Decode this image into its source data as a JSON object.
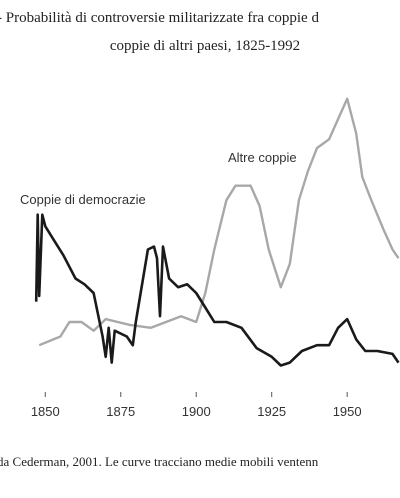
{
  "chart_data": {
    "type": "line",
    "title": "- Probabilità di controversie militarizzate fra coppie d",
    "subtitle": "coppie di altri paesi, 1825-1992",
    "caption": "da Cederman, 2001. Le curve tracciano medie mobili ventenn",
    "xlim": [
      1835,
      1967.5
    ],
    "ylim": [
      0,
      100
    ],
    "xticks": [
      1850,
      1875,
      1900,
      1925,
      1950
    ],
    "series": [
      {
        "name": "Altre coppie",
        "color": "#a8a8a8",
        "x": [
          1848,
          1855,
          1858,
          1862,
          1866,
          1870,
          1874,
          1878,
          1885,
          1890,
          1895,
          1900,
          1903,
          1906,
          1910,
          1913,
          1918,
          1921,
          1924,
          1928,
          1931,
          1934,
          1937,
          1940,
          1944,
          1947,
          1950,
          1953,
          1955,
          1958,
          1962,
          1965,
          1967
        ],
        "values": [
          12,
          15,
          20,
          20,
          17,
          21,
          20,
          19,
          18,
          20,
          22,
          20,
          30,
          45,
          62,
          67,
          67,
          60,
          45,
          32,
          40,
          62,
          72,
          80,
          83,
          90,
          97,
          85,
          70,
          62,
          52,
          45,
          42
        ]
      },
      {
        "name": "Coppie di democrazie",
        "color": "#1a1a1a",
        "x": [
          1847,
          1847.5,
          1848,
          1849,
          1850,
          1853,
          1856,
          1860,
          1863,
          1866,
          1869,
          1870,
          1871,
          1872,
          1873,
          1877,
          1879,
          1880,
          1884,
          1886,
          1887,
          1888,
          1889,
          1891,
          1894,
          1897,
          1900,
          1903,
          1906,
          1910,
          1915,
          1920,
          1925,
          1928,
          1931,
          1935,
          1940,
          1944,
          1947,
          1950,
          1953,
          1956,
          1960,
          1965,
          1967
        ],
        "values": [
          27,
          57,
          29,
          57,
          53,
          48,
          43,
          35,
          33,
          30,
          15,
          8,
          18,
          6,
          17,
          15,
          12,
          20,
          45,
          46,
          42,
          22,
          46,
          35,
          32,
          33,
          30,
          25,
          20,
          20,
          18,
          11,
          8,
          5,
          6,
          10,
          12,
          12,
          18,
          21,
          14,
          10,
          10,
          9,
          6
        ]
      }
    ]
  }
}
